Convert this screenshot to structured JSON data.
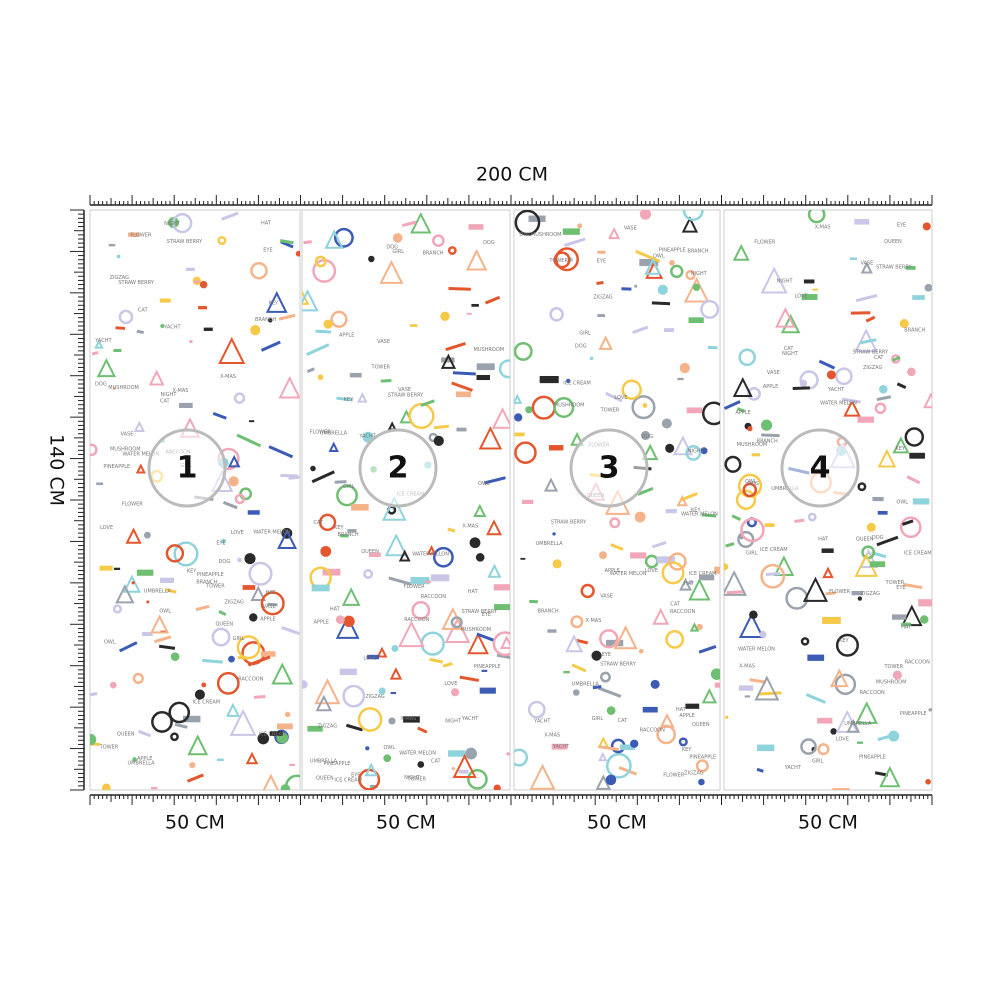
{
  "dimensions": {
    "width": "200 CM",
    "height": "140 CM"
  },
  "panels": [
    {
      "number": "1",
      "width": "50 CM"
    },
    {
      "number": "2",
      "width": "50 CM"
    },
    {
      "number": "3",
      "width": "50 CM"
    },
    {
      "number": "4",
      "width": "50 CM"
    }
  ],
  "pattern_words": [
    "APPLE",
    "BRANCH",
    "GIRL",
    "DOG",
    "LOVE",
    "HAT",
    "ICE CREAM",
    "OWL",
    "MUSHROOM",
    "NIGHT",
    "RACCOON",
    "PINEAPPLE",
    "STRAW BERRY",
    "UMBRELLA",
    "WATER MELON",
    "X-MAS",
    "YACHT",
    "TOWER",
    "ZIGZAG",
    "EYE",
    "CAT",
    "FLOWER",
    "KEY",
    "QUEEN",
    "VASE"
  ]
}
